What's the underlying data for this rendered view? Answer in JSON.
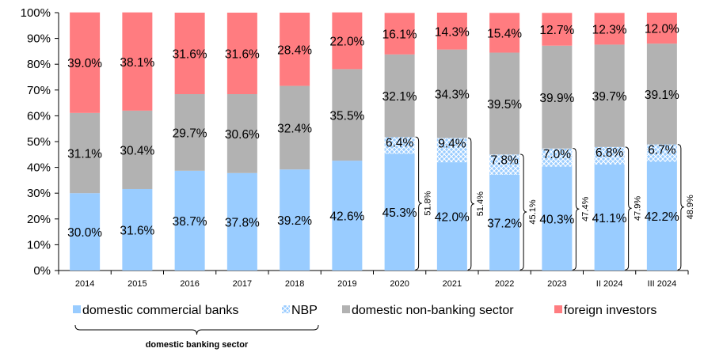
{
  "chart_data": {
    "type": "bar",
    "stacked": true,
    "title": "",
    "xlabel": "",
    "ylabel": "",
    "ylim": [
      0,
      100
    ],
    "y_ticks": [
      "0%",
      "10%",
      "20%",
      "30%",
      "40%",
      "50%",
      "60%",
      "70%",
      "80%",
      "90%",
      "100%"
    ],
    "grid": false,
    "legend_position": "bottom",
    "categories": [
      "2014",
      "2015",
      "2016",
      "2017",
      "2018",
      "2019",
      "2020",
      "2021",
      "2022",
      "2023",
      "II 2024",
      "III 2024"
    ],
    "series": [
      {
        "name": "domestic commercial banks",
        "color": "#99CCFF",
        "pattern": "solid",
        "values": [
          30.0,
          31.6,
          38.7,
          37.8,
          39.2,
          42.6,
          45.3,
          42.0,
          37.2,
          40.3,
          41.1,
          42.2
        ],
        "labels": [
          "30.0%",
          "31.6%",
          "38.7%",
          "37.8%",
          "39.2%",
          "42.6%",
          "45.3%",
          "42.0%",
          "37.2%",
          "40.3%",
          "41.1%",
          "42.2%"
        ]
      },
      {
        "name": "NBP",
        "color": "#99CCFF",
        "pattern": "crosshatch",
        "values": [
          0,
          0,
          0,
          0,
          0,
          0,
          6.4,
          9.4,
          7.8,
          7.0,
          6.8,
          6.7
        ],
        "labels": [
          "",
          "",
          "",
          "",
          "",
          "",
          "6.4%",
          "9.4%",
          "7.8%",
          "7.0%",
          "6.8%",
          "6.7%"
        ]
      },
      {
        "name": "domestic non-banking sector",
        "color": "#B2B2B2",
        "pattern": "solid",
        "values": [
          31.1,
          30.4,
          29.7,
          30.6,
          32.4,
          35.5,
          32.1,
          34.3,
          39.5,
          39.9,
          39.7,
          39.1
        ],
        "labels": [
          "31.1%",
          "30.4%",
          "29.7%",
          "30.6%",
          "32.4%",
          "35.5%",
          "32.1%",
          "34.3%",
          "39.5%",
          "39.9%",
          "39.7%",
          "39.1%"
        ]
      },
      {
        "name": "foreign investors",
        "color": "#FF7C80",
        "pattern": "solid",
        "values": [
          39.0,
          38.1,
          31.6,
          31.6,
          28.4,
          22.0,
          16.1,
          14.3,
          15.4,
          12.7,
          12.3,
          12.0
        ],
        "labels": [
          "39.0%",
          "38.1%",
          "31.6%",
          "31.6%",
          "28.4%",
          "22.0%",
          "16.1%",
          "14.3%",
          "15.4%",
          "12.7%",
          "12.3%",
          "12.0%"
        ]
      }
    ],
    "brackets": [
      {
        "category": "2020",
        "value": 51.8,
        "label": "51.8%"
      },
      {
        "category": "2021",
        "value": 51.4,
        "label": "51.4%"
      },
      {
        "category": "2022",
        "value": 45.1,
        "label": "45.1%"
      },
      {
        "category": "2023",
        "value": 47.4,
        "label": "47.4%"
      },
      {
        "category": "II 2024",
        "value": 47.9,
        "label": "47.9%"
      },
      {
        "category": "III 2024",
        "value": 48.9,
        "label": "48.9%"
      }
    ],
    "legend_group_label": "domestic banking sector"
  }
}
